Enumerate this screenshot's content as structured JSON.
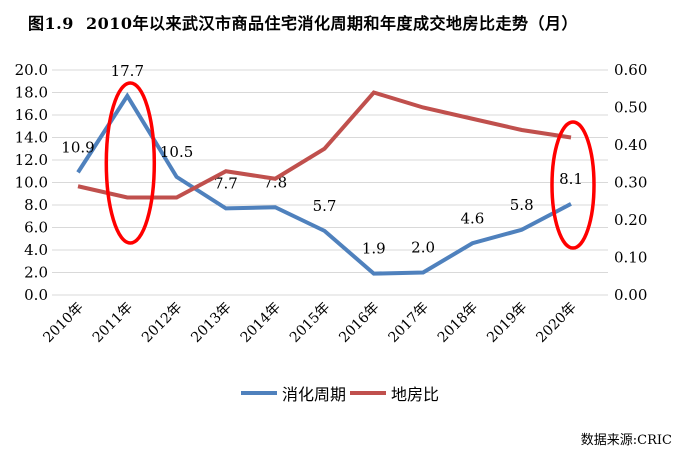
{
  "title": "图1.9  2010年以来武汉市商品住宅消化周期和年度成交地房比走势（月）",
  "source": "数据来源:CRIC",
  "palette": {
    "blue": "#4F81BD",
    "red": "#C0504D",
    "annotation": "#FF0000",
    "gridline": "#D9D9D9",
    "text": "#000000"
  },
  "legend": [
    {
      "label": "消化周期",
      "color": "#4F81BD"
    },
    {
      "label": "地房比",
      "color": "#C0504D"
    }
  ],
  "chart_data": {
    "type": "line",
    "title": "图1.9  2010年以来武汉市商品住宅消化周期和年度成交地房比走势（月）",
    "categories": [
      "2010年",
      "2011年",
      "2012年",
      "2013年",
      "2014年",
      "2015年",
      "2016年",
      "2017年",
      "2018年",
      "2019年",
      "2020年"
    ],
    "series": [
      {
        "name": "消化周期",
        "axis": "left",
        "color": "#4F81BD",
        "values": [
          10.9,
          17.7,
          10.5,
          7.7,
          7.8,
          5.7,
          1.9,
          2.0,
          4.6,
          5.8,
          8.1
        ],
        "point_labels": [
          "10.9",
          "17.7",
          "10.5",
          "7.7",
          "7.8",
          "5.7",
          "1.9",
          "2.0",
          "4.6",
          "5.8",
          "8.1"
        ]
      },
      {
        "name": "地房比",
        "axis": "right",
        "color": "#C0504D",
        "values": [
          0.29,
          0.26,
          0.26,
          0.33,
          0.31,
          0.39,
          0.54,
          0.5,
          0.47,
          0.44,
          0.42
        ],
        "point_labels": []
      }
    ],
    "left_axis": {
      "min": 0,
      "max": 20,
      "step": 2,
      "ticks": [
        "20.0",
        "18.0",
        "16.0",
        "14.0",
        "12.0",
        "10.0",
        "8.0",
        "6.0",
        "4.0",
        "2.0",
        "0.0"
      ]
    },
    "right_axis": {
      "min": 0.0,
      "max": 0.6,
      "step": 0.1,
      "ticks": [
        "0.60",
        "0.50",
        "0.40",
        "0.30",
        "0.20",
        "0.10",
        "0.00"
      ]
    },
    "grid": "horizontal",
    "legend_position": "bottom",
    "annotations": [
      {
        "type": "ellipse",
        "category": "2011年"
      },
      {
        "type": "ellipse",
        "category": "2020年"
      }
    ]
  }
}
